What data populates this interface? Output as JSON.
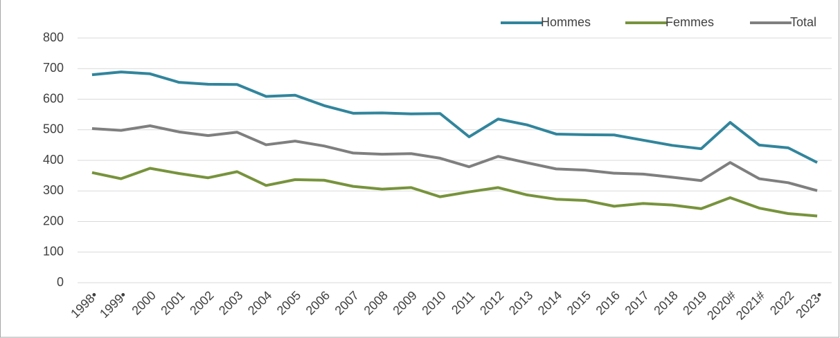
{
  "chart_data": {
    "type": "line",
    "categories": [
      "1998•",
      "1999•",
      "2000",
      "2001",
      "2002",
      "2003",
      "2004",
      "2005",
      "2006",
      "2007",
      "2008",
      "2009",
      "2010",
      "2011",
      "2012",
      "2013",
      "2014",
      "2015",
      "2016",
      "2017",
      "2018",
      "2019",
      "2020#",
      "2021#",
      "2022",
      "2023•"
    ],
    "series": [
      {
        "name": "Hommes",
        "color": "#31859c",
        "values": [
          680,
          689,
          683,
          655,
          649,
          648,
          609,
          613,
          579,
          554,
          555,
          552,
          553,
          477,
          535,
          516,
          486,
          484,
          483,
          466,
          449,
          438,
          524,
          450,
          441,
          393
        ]
      },
      {
        "name": "Femmes",
        "color": "#77933c",
        "values": [
          360,
          340,
          374,
          357,
          343,
          363,
          318,
          337,
          335,
          315,
          306,
          311,
          281,
          297,
          311,
          287,
          273,
          269,
          250,
          259,
          254,
          242,
          278,
          244,
          226,
          218
        ]
      },
      {
        "name": "Total",
        "color": "#7f7f7f",
        "values": [
          504,
          498,
          513,
          493,
          481,
          492,
          451,
          463,
          447,
          424,
          420,
          422,
          407,
          379,
          413,
          392,
          372,
          368,
          358,
          355,
          345,
          334,
          393,
          340,
          327,
          301
        ]
      }
    ],
    "ylim": [
      0,
      800
    ],
    "yticks": [
      0,
      100,
      200,
      300,
      400,
      500,
      600,
      700,
      800
    ],
    "grid": true,
    "legend": "top-right"
  }
}
